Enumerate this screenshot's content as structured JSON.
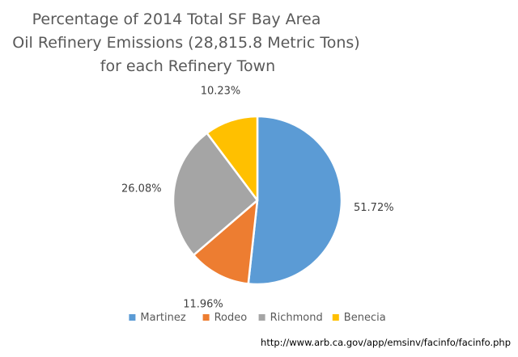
{
  "chart_data": {
    "type": "pie",
    "title": [
      "Percentage of 2014 Total SF Bay Area",
      "Oil Refinery Emissions (28,815.8 Metric Tons)",
      "for each Refinery Town"
    ],
    "slices": [
      {
        "label": "Martinez",
        "value": 51.72,
        "display": "51.72%",
        "color": "#5B9BD5"
      },
      {
        "label": "Rodeo",
        "value": 11.96,
        "display": "11.96%",
        "color": "#ED7D31"
      },
      {
        "label": "Richmond",
        "value": 26.08,
        "display": "26.08%",
        "color": "#A5A5A5"
      },
      {
        "label": "Benecia",
        "value": 10.23,
        "display": "10.23%",
        "color": "#FFC000"
      }
    ],
    "legend_position": "bottom",
    "source": "http://www.arb.ca.gov/app/emsinv/facinfo/facinfo.php"
  }
}
